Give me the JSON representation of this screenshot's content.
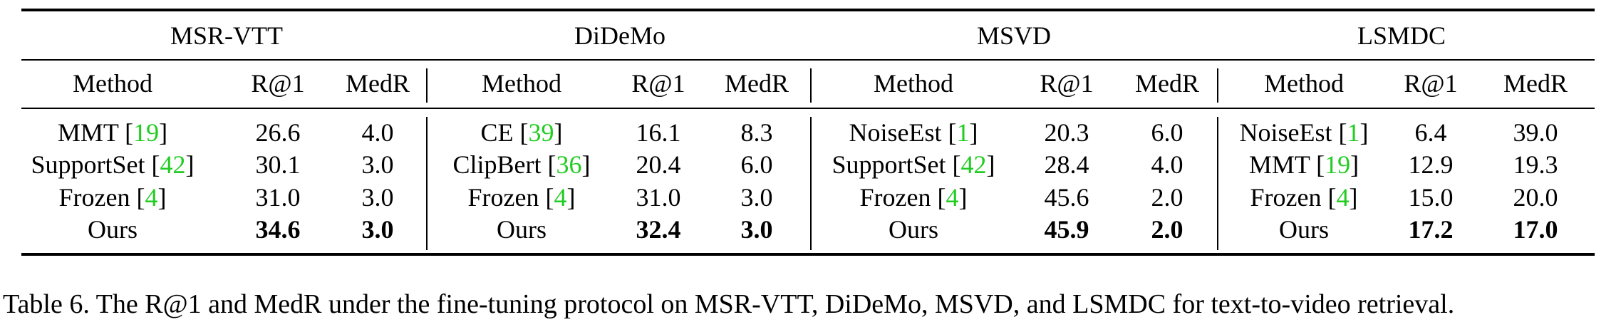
{
  "datasets": [
    {
      "name": "MSR-VTT",
      "headers": [
        "Method",
        "R@1",
        "MedR"
      ],
      "rows": [
        {
          "method": "MMT",
          "ref": "19",
          "r1": "26.6",
          "medr": "4.0",
          "bold": false
        },
        {
          "method": "SupportSet",
          "ref": "42",
          "r1": "30.1",
          "medr": "3.0",
          "bold": false
        },
        {
          "method": "Frozen",
          "ref": "4",
          "r1": "31.0",
          "medr": "3.0",
          "bold": false
        },
        {
          "method": "Ours",
          "ref": "",
          "r1": "34.6",
          "medr": "3.0",
          "bold": true
        }
      ]
    },
    {
      "name": "DiDeMo",
      "headers": [
        "Method",
        "R@1",
        "MedR"
      ],
      "rows": [
        {
          "method": "CE",
          "ref": "39",
          "r1": "16.1",
          "medr": "8.3",
          "bold": false
        },
        {
          "method": "ClipBert",
          "ref": "36",
          "r1": "20.4",
          "medr": "6.0",
          "bold": false
        },
        {
          "method": "Frozen",
          "ref": "4",
          "r1": "31.0",
          "medr": "3.0",
          "bold": false
        },
        {
          "method": "Ours",
          "ref": "",
          "r1": "32.4",
          "medr": "3.0",
          "bold": true
        }
      ]
    },
    {
      "name": "MSVD",
      "headers": [
        "Method",
        "R@1",
        "MedR"
      ],
      "rows": [
        {
          "method": "NoiseEst",
          "ref": "1",
          "r1": "20.3",
          "medr": "6.0",
          "bold": false
        },
        {
          "method": "SupportSet",
          "ref": "42",
          "r1": "28.4",
          "medr": "4.0",
          "bold": false
        },
        {
          "method": "Frozen",
          "ref": "4",
          "r1": "45.6",
          "medr": "2.0",
          "bold": false
        },
        {
          "method": "Ours",
          "ref": "",
          "r1": "45.9",
          "medr": "2.0",
          "bold": true
        }
      ]
    },
    {
      "name": "LSMDC",
      "headers": [
        "Method",
        "R@1",
        "MedR"
      ],
      "rows": [
        {
          "method": "NoiseEst",
          "ref": "1",
          "r1": "6.4",
          "medr": "39.0",
          "bold": false
        },
        {
          "method": "MMT",
          "ref": "19",
          "r1": "12.9",
          "medr": "19.3",
          "bold": false
        },
        {
          "method": "Frozen",
          "ref": "4",
          "r1": "15.0",
          "medr": "20.0",
          "bold": false
        },
        {
          "method": "Ours",
          "ref": "",
          "r1": "17.2",
          "medr": "17.0",
          "bold": true
        }
      ]
    }
  ],
  "caption": "Table 6. The R@1 and MedR under the fine-tuning protocol on MSR-VTT, DiDeMo, MSVD, and LSMDC for text-to-video retrieval.",
  "colors": {
    "ref": "#22cc22",
    "text": "#000000"
  }
}
